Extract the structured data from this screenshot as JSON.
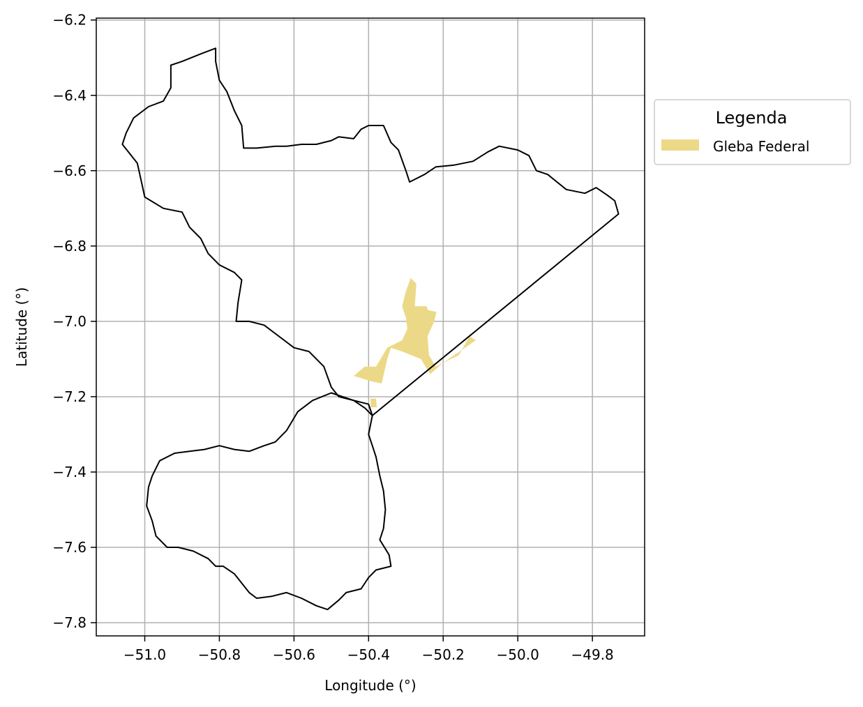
{
  "chart_data": {
    "type": "map",
    "xlabel": "Longitude (°)",
    "ylabel": "Latitude (°)",
    "xlim": [
      -51.13,
      -49.66
    ],
    "ylim": [
      -7.835,
      -6.195
    ],
    "x_ticks": [
      -51.0,
      -50.8,
      -50.6,
      -50.4,
      -50.2,
      -50.0,
      -49.8
    ],
    "x_tick_labels": [
      "−51.0",
      "−50.8",
      "−50.6",
      "−50.4",
      "−50.2",
      "−50.0",
      "−49.8"
    ],
    "y_ticks": [
      -6.2,
      -6.4,
      -6.6,
      -6.8,
      -7.0,
      -7.2,
      -7.4,
      -7.6,
      -7.8
    ],
    "y_tick_labels": [
      "−6.2",
      "−6.4",
      "−6.6",
      "−6.8",
      "−7.0",
      "−7.2",
      "−7.4",
      "−7.6",
      "−7.8"
    ],
    "grid": true,
    "legend": {
      "title": "Legenda",
      "placement": "right, outside plot",
      "entries": [
        {
          "label": "Gleba Federal",
          "color": "#ecd987"
        }
      ]
    },
    "layers": [
      {
        "name": "municipality-boundary-north",
        "style": "outline",
        "stroke": "#000000",
        "coords": [
          [
            -50.81,
            -6.275
          ],
          [
            -50.85,
            -6.29
          ],
          [
            -50.9,
            -6.31
          ],
          [
            -50.93,
            -6.32
          ],
          [
            -50.93,
            -6.38
          ],
          [
            -50.95,
            -6.415
          ],
          [
            -50.99,
            -6.43
          ],
          [
            -51.03,
            -6.46
          ],
          [
            -51.05,
            -6.5
          ],
          [
            -51.06,
            -6.53
          ],
          [
            -51.02,
            -6.58
          ],
          [
            -51.01,
            -6.625
          ],
          [
            -51.0,
            -6.67
          ],
          [
            -50.95,
            -6.7
          ],
          [
            -50.9,
            -6.71
          ],
          [
            -50.88,
            -6.75
          ],
          [
            -50.85,
            -6.78
          ],
          [
            -50.83,
            -6.82
          ],
          [
            -50.8,
            -6.85
          ],
          [
            -50.76,
            -6.87
          ],
          [
            -50.74,
            -6.89
          ],
          [
            -50.75,
            -6.95
          ],
          [
            -50.755,
            -7.0
          ],
          [
            -50.72,
            -7.0
          ],
          [
            -50.68,
            -7.01
          ],
          [
            -50.64,
            -7.04
          ],
          [
            -50.6,
            -7.07
          ],
          [
            -50.56,
            -7.08
          ],
          [
            -50.52,
            -7.12
          ],
          [
            -50.5,
            -7.175
          ],
          [
            -50.48,
            -7.2
          ],
          [
            -50.44,
            -7.21
          ],
          [
            -50.4,
            -7.22
          ],
          [
            -50.39,
            -7.25
          ],
          [
            -49.73,
            -6.715
          ],
          [
            -49.74,
            -6.68
          ],
          [
            -49.76,
            -6.665
          ],
          [
            -49.79,
            -6.645
          ],
          [
            -49.82,
            -6.66
          ],
          [
            -49.87,
            -6.65
          ],
          [
            -49.92,
            -6.61
          ],
          [
            -49.95,
            -6.6
          ],
          [
            -49.97,
            -6.56
          ],
          [
            -50.0,
            -6.545
          ],
          [
            -50.05,
            -6.535
          ],
          [
            -50.08,
            -6.55
          ],
          [
            -50.12,
            -6.575
          ],
          [
            -50.17,
            -6.585
          ],
          [
            -50.22,
            -6.59
          ],
          [
            -50.25,
            -6.61
          ],
          [
            -50.29,
            -6.63
          ],
          [
            -50.3,
            -6.6
          ],
          [
            -50.32,
            -6.545
          ],
          [
            -50.34,
            -6.525
          ],
          [
            -50.36,
            -6.48
          ],
          [
            -50.4,
            -6.48
          ],
          [
            -50.42,
            -6.49
          ],
          [
            -50.44,
            -6.515
          ],
          [
            -50.48,
            -6.51
          ],
          [
            -50.5,
            -6.52
          ],
          [
            -50.54,
            -6.53
          ],
          [
            -50.58,
            -6.53
          ],
          [
            -50.62,
            -6.535
          ],
          [
            -50.65,
            -6.535
          ],
          [
            -50.7,
            -6.54
          ],
          [
            -50.735,
            -6.54
          ],
          [
            -50.74,
            -6.48
          ],
          [
            -50.76,
            -6.44
          ],
          [
            -50.78,
            -6.39
          ],
          [
            -50.8,
            -6.36
          ],
          [
            -50.81,
            -6.31
          ],
          [
            -50.81,
            -6.275
          ]
        ]
      },
      {
        "name": "municipality-boundary-south",
        "style": "outline",
        "stroke": "#000000",
        "coords": [
          [
            -50.5,
            -7.19
          ],
          [
            -50.55,
            -7.21
          ],
          [
            -50.59,
            -7.24
          ],
          [
            -50.62,
            -7.29
          ],
          [
            -50.65,
            -7.32
          ],
          [
            -50.68,
            -7.33
          ],
          [
            -50.72,
            -7.345
          ],
          [
            -50.76,
            -7.34
          ],
          [
            -50.8,
            -7.33
          ],
          [
            -50.84,
            -7.34
          ],
          [
            -50.88,
            -7.345
          ],
          [
            -50.92,
            -7.35
          ],
          [
            -50.96,
            -7.37
          ],
          [
            -50.98,
            -7.41
          ],
          [
            -50.99,
            -7.44
          ],
          [
            -50.995,
            -7.49
          ],
          [
            -50.98,
            -7.53
          ],
          [
            -50.97,
            -7.57
          ],
          [
            -50.94,
            -7.6
          ],
          [
            -50.91,
            -7.6
          ],
          [
            -50.87,
            -7.61
          ],
          [
            -50.83,
            -7.63
          ],
          [
            -50.81,
            -7.65
          ],
          [
            -50.79,
            -7.65
          ],
          [
            -50.76,
            -7.67
          ],
          [
            -50.72,
            -7.72
          ],
          [
            -50.7,
            -7.735
          ],
          [
            -50.66,
            -7.73
          ],
          [
            -50.62,
            -7.72
          ],
          [
            -50.58,
            -7.735
          ],
          [
            -50.54,
            -7.755
          ],
          [
            -50.51,
            -7.765
          ],
          [
            -50.48,
            -7.74
          ],
          [
            -50.46,
            -7.72
          ],
          [
            -50.42,
            -7.71
          ],
          [
            -50.4,
            -7.68
          ],
          [
            -50.38,
            -7.66
          ],
          [
            -50.34,
            -7.65
          ],
          [
            -50.345,
            -7.62
          ],
          [
            -50.37,
            -7.58
          ],
          [
            -50.36,
            -7.55
          ],
          [
            -50.355,
            -7.5
          ],
          [
            -50.36,
            -7.45
          ],
          [
            -50.37,
            -7.41
          ],
          [
            -50.38,
            -7.36
          ],
          [
            -50.39,
            -7.33
          ],
          [
            -50.4,
            -7.3
          ],
          [
            -50.39,
            -7.25
          ],
          [
            -50.41,
            -7.23
          ],
          [
            -50.44,
            -7.21
          ],
          [
            -50.47,
            -7.2
          ],
          [
            -50.5,
            -7.19
          ]
        ]
      },
      {
        "name": "gleba-federal",
        "style": "fill",
        "fill": "#ecd987",
        "coords": [
          [
            -50.287,
            -6.885
          ],
          [
            -50.272,
            -6.9
          ],
          [
            -50.276,
            -6.96
          ],
          [
            -50.244,
            -6.96
          ],
          [
            -50.241,
            -6.97
          ],
          [
            -50.218,
            -6.975
          ],
          [
            -50.224,
            -7.0
          ],
          [
            -50.242,
            -7.04
          ],
          [
            -50.238,
            -7.09
          ],
          [
            -50.22,
            -7.12
          ],
          [
            -50.158,
            -7.09
          ],
          [
            -50.13,
            -7.04
          ],
          [
            -50.112,
            -7.05
          ],
          [
            -50.2,
            -7.11
          ],
          [
            -50.235,
            -7.14
          ],
          [
            -50.26,
            -7.1
          ],
          [
            -50.31,
            -7.08
          ],
          [
            -50.34,
            -7.07
          ],
          [
            -50.35,
            -7.1
          ],
          [
            -50.365,
            -7.165
          ],
          [
            -50.39,
            -7.16
          ],
          [
            -50.44,
            -7.145
          ],
          [
            -50.41,
            -7.12
          ],
          [
            -50.38,
            -7.12
          ],
          [
            -50.35,
            -7.07
          ],
          [
            -50.31,
            -7.05
          ],
          [
            -50.296,
            -7.02
          ],
          [
            -50.3,
            -6.99
          ],
          [
            -50.31,
            -6.96
          ],
          [
            -50.3,
            -6.92
          ],
          [
            -50.287,
            -6.885
          ]
        ]
      },
      {
        "name": "gleba-federal-small",
        "style": "fill",
        "fill": "#ecd987",
        "coords": [
          [
            -50.395,
            -7.205
          ],
          [
            -50.38,
            -7.205
          ],
          [
            -50.378,
            -7.228
          ],
          [
            -50.394,
            -7.228
          ],
          [
            -50.395,
            -7.205
          ]
        ]
      }
    ]
  }
}
